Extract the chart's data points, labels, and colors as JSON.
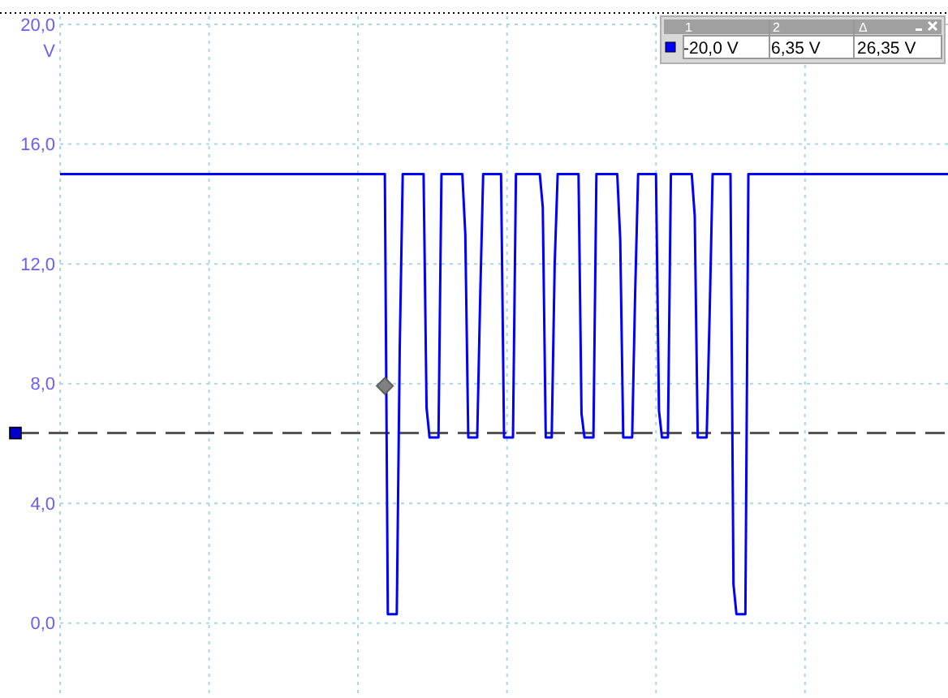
{
  "chart_data": {
    "type": "line",
    "ylabel": "V",
    "categories": [
      null,
      null,
      null,
      null,
      null,
      null,
      null,
      null,
      null,
      null,
      null,
      null,
      null,
      null,
      null,
      null,
      null,
      null,
      null,
      null,
      null,
      null,
      null,
      null,
      null,
      null,
      null,
      null,
      null,
      null,
      null,
      null,
      null,
      null,
      null,
      null,
      null,
      null,
      null,
      null,
      null,
      null,
      null,
      null,
      null,
      null,
      null,
      null,
      null,
      null,
      null,
      null,
      null,
      null,
      null,
      null,
      null,
      null,
      null,
      null,
      null,
      null,
      null,
      null,
      null,
      null,
      null,
      null,
      null,
      null,
      null,
      null,
      null,
      null,
      null,
      null,
      null,
      null,
      null,
      null,
      null,
      null,
      null,
      null,
      null,
      null,
      null,
      null,
      null,
      null,
      null,
      null,
      null,
      null,
      null,
      null,
      null,
      null,
      null,
      null,
      null,
      null,
      null,
      null,
      null,
      null,
      null,
      null,
      null,
      null,
      null,
      null,
      null,
      null,
      null,
      null,
      null,
      null,
      null,
      null,
      null,
      null,
      null,
      null,
      null,
      null,
      null,
      null,
      null,
      null,
      null,
      null,
      null,
      null,
      null,
      null,
      null,
      null,
      null,
      null,
      null,
      null,
      null,
      null,
      null,
      null,
      null,
      null,
      null,
      null,
      null,
      null,
      null,
      null,
      null,
      null,
      null,
      null,
      null,
      null,
      null,
      null,
      null,
      null,
      null,
      null,
      null,
      null,
      null,
      null,
      null,
      null,
      null,
      null,
      null,
      null,
      null,
      null,
      null,
      null,
      null,
      null,
      null,
      null,
      null,
      null,
      null,
      null,
      null,
      null,
      null,
      null,
      null,
      null,
      null,
      null,
      null,
      null,
      null,
      null,
      null,
      null,
      null,
      null,
      null,
      null,
      null,
      null,
      null,
      null,
      null,
      null,
      null,
      null,
      null,
      null,
      null,
      null,
      null,
      null,
      null,
      null,
      null,
      null,
      null,
      null,
      null,
      null,
      null,
      null,
      null,
      null,
      null,
      null,
      null,
      null,
      null,
      null,
      null,
      null,
      null,
      null,
      null,
      null,
      null,
      null,
      null,
      null,
      null,
      null,
      null,
      null,
      null,
      null,
      null,
      null,
      null,
      null,
      null,
      null,
      null,
      null,
      null,
      null,
      null,
      null,
      null,
      null,
      null,
      null,
      null,
      null,
      null,
      null,
      null,
      null,
      null,
      null,
      null,
      null,
      null,
      null,
      null,
      null,
      null,
      null,
      null,
      null,
      null,
      null,
      null,
      null,
      null,
      null,
      null,
      null,
      null,
      null,
      null
    ],
    "series": [
      {
        "color": "#0000ff",
        "values": [
          15,
          15,
          15,
          15,
          15,
          15,
          15,
          15,
          15,
          15,
          15,
          15,
          15,
          15,
          15,
          15,
          15,
          15,
          15,
          15,
          15,
          15,
          15,
          15,
          15,
          15,
          15,
          15,
          15,
          15,
          15,
          15,
          15,
          15,
          15,
          15,
          15,
          15,
          15,
          15,
          15,
          15,
          15,
          15,
          15,
          15,
          15,
          15,
          15,
          15,
          15,
          15,
          15,
          15,
          15,
          15,
          15,
          15,
          15,
          15,
          15,
          15,
          15,
          15,
          15,
          15,
          15,
          15,
          15,
          15,
          15,
          15,
          15,
          15,
          15,
          15,
          15,
          15,
          15,
          15,
          15,
          15,
          15,
          15,
          15,
          15,
          15,
          15,
          15,
          15,
          15,
          15,
          15,
          15,
          15,
          15,
          15,
          15,
          15,
          15,
          15,
          15,
          15,
          15,
          15,
          15,
          15,
          15,
          15,
          15,
          0.3,
          0.3,
          0.3,
          0.3,
          9.2,
          15,
          15,
          15,
          15,
          15,
          15,
          15,
          15,
          7.2,
          6.2,
          6.2,
          6.2,
          6.2,
          15,
          15,
          15,
          15,
          15,
          15,
          15,
          15,
          13,
          6.2,
          6.2,
          6.2,
          6.2,
          10.9,
          15,
          15,
          15,
          15,
          15,
          15,
          15,
          6.2,
          6.2,
          6.2,
          6.2,
          15,
          15,
          15,
          15,
          15,
          15,
          15,
          15,
          15,
          13.9,
          6.2,
          6.2,
          6.2,
          12,
          15,
          15,
          15,
          15,
          15,
          15,
          15,
          15,
          7,
          6.2,
          6.2,
          6.2,
          6.2,
          15,
          15,
          15,
          15,
          15,
          15,
          15,
          15,
          12.8,
          6.2,
          6.2,
          6.2,
          6.2,
          11,
          15,
          15,
          15,
          15,
          15,
          15,
          15,
          7.1,
          6.2,
          6.2,
          6.2,
          15,
          15,
          15,
          15,
          15,
          15,
          15,
          15,
          13.6,
          6.2,
          6.2,
          6.2,
          6.2,
          10.3,
          15,
          15,
          15,
          15,
          15,
          15,
          15,
          1.3,
          0.3,
          0.3,
          0.3,
          0.3,
          15,
          15,
          15,
          15,
          15,
          15,
          15,
          15,
          15,
          15,
          15,
          15,
          15,
          15,
          15,
          15,
          15,
          15,
          15,
          15,
          15,
          15,
          15,
          15,
          15,
          15,
          15,
          15,
          15,
          15,
          15,
          15,
          15,
          15,
          15,
          15,
          15,
          15,
          15,
          15,
          15,
          15,
          15,
          15,
          15,
          15,
          15,
          15,
          15,
          15,
          15,
          15,
          15,
          15,
          15,
          15,
          15,
          15,
          15,
          15,
          15,
          15,
          15,
          15,
          15,
          15,
          15,
          15
        ]
      }
    ],
    "ylim": [
      -2.5,
      20.4
    ],
    "yticks": [
      {
        "value": 0,
        "label": "0,0"
      },
      {
        "value": 4,
        "label": "4,0"
      },
      {
        "value": 8,
        "label": "8,0"
      },
      {
        "value": 12,
        "label": "12,0"
      },
      {
        "value": 16,
        "label": "16,0"
      },
      {
        "value": 20,
        "label": "20,0"
      }
    ],
    "grid": true,
    "marker": "none",
    "line_style": "solid",
    "ref_lines": [
      {
        "axis": "y",
        "value": 6.35,
        "color": "#555555",
        "line_style": "dashed"
      }
    ],
    "annotations": [
      "1",
      "2",
      "Δ",
      "-20,0 V",
      "6,35 V",
      "26,35 V"
    ]
  }
}
